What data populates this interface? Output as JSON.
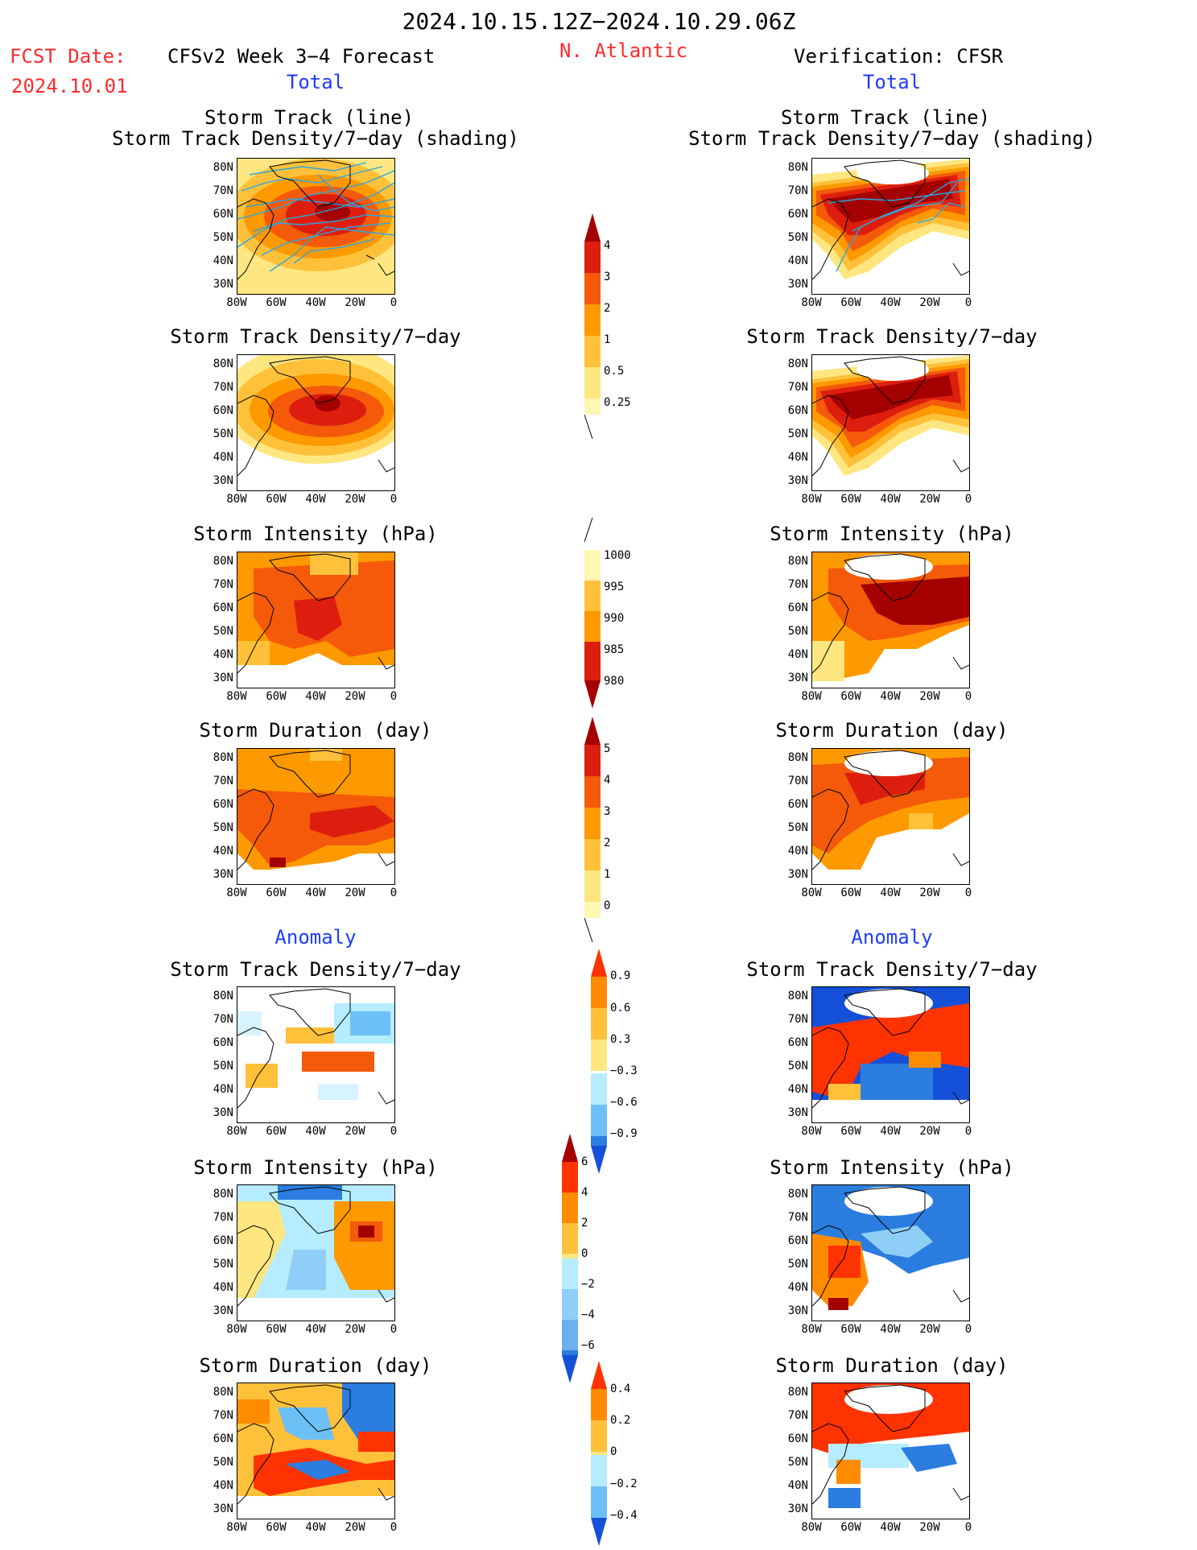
{
  "header": {
    "date_range": "2024.10.15.12Z−2024.10.29.06Z",
    "fcst_date_label": "FCST Date:",
    "fcst_date_value": "2024.10.01",
    "forecast_title": "CFSv2 Week 3−4 Forecast",
    "region": "N. Atlantic",
    "verification_title": "Verification: CFSR"
  },
  "sections": {
    "total": "Total",
    "anomaly": "Anomaly"
  },
  "panel_titles": {
    "track_line": "Storm Track (line)",
    "track_shading": "Storm Track Density/7−day (shading)",
    "density": "Storm Track Density/7−day",
    "intensity": "Storm Intensity (hPa)",
    "duration": "Storm Duration (day)"
  },
  "axes": {
    "lat_ticks": [
      "80N",
      "70N",
      "60N",
      "50N",
      "40N",
      "30N"
    ],
    "lon_ticks": [
      "80W",
      "60W",
      "40W",
      "20W",
      "0"
    ]
  },
  "colorbars": {
    "density_total": {
      "labels": [
        "4",
        "3",
        "2",
        "1",
        "0.5",
        "0.25"
      ],
      "colors": [
        "#a50000",
        "#dd1e0e",
        "#f45a0a",
        "#ff9900",
        "#ffc13a",
        "#ffe680",
        "#fff7b3"
      ]
    },
    "intensity_total": {
      "labels": [
        "1000",
        "995",
        "990",
        "985",
        "980"
      ],
      "colors": [
        "#fff7b3",
        "#ffc13a",
        "#ff9900",
        "#f45a0a",
        "#dd1e0e",
        "#a50000"
      ]
    },
    "duration_total": {
      "labels": [
        "5",
        "4",
        "3",
        "2",
        "1",
        "0"
      ],
      "colors": [
        "#a50000",
        "#dd1e0e",
        "#f45a0a",
        "#ff9900",
        "#ffc13a",
        "#ffe680",
        "#fff7b3"
      ]
    },
    "density_anom": {
      "labels": [
        "0.9",
        "0.6",
        "0.3",
        "−0.3",
        "−0.6",
        "−0.9"
      ],
      "colors": [
        "#ff3300",
        "#ff8c00",
        "#ffc13a",
        "#ffe680",
        "#ffffff",
        "#b5ecff",
        "#6cc0f5",
        "#2b7ee0",
        "#1550d8"
      ]
    },
    "intensity_anom": {
      "labels": [
        "6",
        "4",
        "2",
        "0",
        "−2",
        "−4",
        "−6"
      ],
      "colors": [
        "#a50000",
        "#ff3300",
        "#ff8c00",
        "#ffc13a",
        "#ffe680",
        "#b5ecff",
        "#8fcff7",
        "#6cb0f2",
        "#2b7ee0",
        "#1550d8"
      ]
    },
    "duration_anom": {
      "labels": [
        "0.4",
        "0.2",
        "0",
        "−0.2",
        "−0.4"
      ],
      "colors": [
        "#ff3300",
        "#ff8c00",
        "#ffc13a",
        "#ffe680",
        "#b5ecff",
        "#6cc0f5",
        "#2b7ee0",
        "#1550d8"
      ]
    }
  }
}
